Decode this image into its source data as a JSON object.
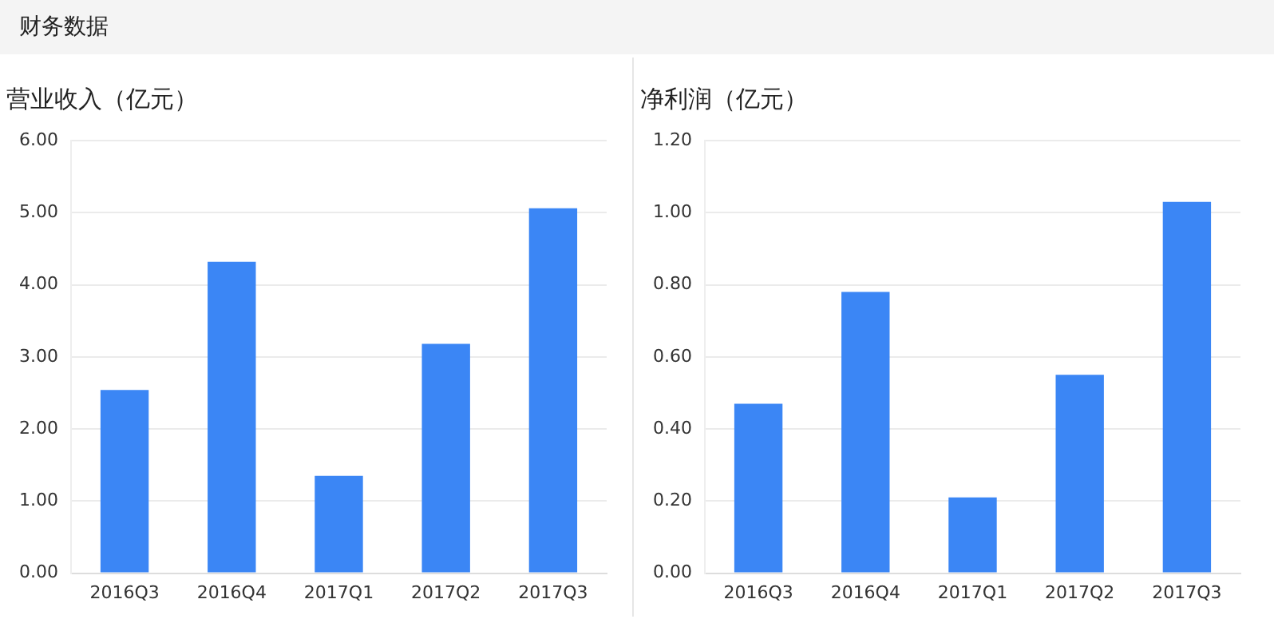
{
  "chart_data": [
    {
      "type": "bar",
      "title": "营业收入（亿元）",
      "annotations": [
        "财务数据"
      ],
      "categories": [
        "2016Q3",
        "2016Q4",
        "2017Q1",
        "2017Q2",
        "2017Q3"
      ],
      "values": [
        2.54,
        4.32,
        1.35,
        3.18,
        5.06
      ],
      "color": "#3b86f5",
      "ylim": [
        0,
        6
      ],
      "yticks": [
        {
          "value": 0,
          "label": "0.00"
        },
        {
          "value": 1,
          "label": "1.00"
        },
        {
          "value": 2,
          "label": "2.00"
        },
        {
          "value": 3,
          "label": "3.00"
        },
        {
          "value": 4,
          "label": "4.00"
        },
        {
          "value": 5,
          "label": "5.00"
        },
        {
          "value": 6,
          "label": "6.00"
        }
      ],
      "grid": "y"
    },
    {
      "type": "bar",
      "title": "净利润（亿元）",
      "categories": [
        "2016Q3",
        "2016Q4",
        "2017Q1",
        "2017Q2",
        "2017Q3"
      ],
      "values": [
        0.47,
        0.78,
        0.21,
        0.55,
        1.03
      ],
      "color": "#3b86f5",
      "ylim": [
        0,
        1.2
      ],
      "yticks": [
        {
          "value": 0,
          "label": "0.00"
        },
        {
          "value": 0.2,
          "label": "0.20"
        },
        {
          "value": 0.4,
          "label": "0.40"
        },
        {
          "value": 0.6,
          "label": "0.60"
        },
        {
          "value": 0.8,
          "label": "0.80"
        },
        {
          "value": 1,
          "label": "1.00"
        },
        {
          "value": 1.2,
          "label": "1.20"
        }
      ],
      "grid": "y"
    }
  ]
}
